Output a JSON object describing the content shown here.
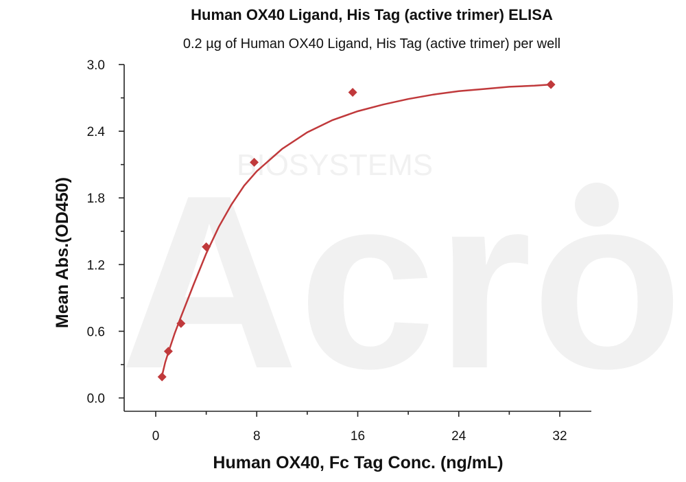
{
  "watermark": {
    "logo_text": "Acro",
    "sub_text": "BIOSYSTEMS"
  },
  "chart_data": {
    "type": "scatter",
    "title": "Human OX40 Ligand, His Tag (active trimer) ELISA",
    "subtitle": "0.2 µg of Human OX40 Ligand, His Tag (active trimer) per well",
    "xlabel": "Human OX40, Fc Tag Conc. (ng/mL)",
    "ylabel": "Mean Abs.(OD450)",
    "xlim": [
      -2.5,
      34.5
    ],
    "ylim": [
      -0.12,
      3.0
    ],
    "x_ticks": [
      0,
      8,
      16,
      24,
      32
    ],
    "y_ticks": [
      0.0,
      0.6,
      1.2,
      1.8,
      2.4,
      3.0
    ],
    "x_tick_labels": [
      "0",
      "8",
      "16",
      "24",
      "32"
    ],
    "y_tick_labels": [
      "0.0",
      "0.6",
      "1.2",
      "1.8",
      "2.4",
      "3.0"
    ],
    "grid": false,
    "color": "#c0393b",
    "series": [
      {
        "marker": "diamond",
        "x": [
          0.5,
          1.0,
          2.0,
          4.0,
          7.8,
          15.6,
          31.3
        ],
        "y": [
          0.19,
          0.42,
          0.67,
          1.36,
          2.12,
          2.75,
          2.82
        ]
      }
    ],
    "fit_curve": {
      "type": "4PL",
      "x": [
        0.5,
        0.75,
        1.0,
        1.5,
        2.0,
        3.0,
        4.0,
        5.0,
        6.0,
        7.0,
        8.0,
        10.0,
        12.0,
        14.0,
        16.0,
        18.0,
        20.0,
        22.0,
        24.0,
        26.0,
        28.0,
        30.0,
        31.3
      ],
      "y": [
        0.2,
        0.32,
        0.41,
        0.58,
        0.73,
        1.02,
        1.3,
        1.54,
        1.74,
        1.91,
        2.04,
        2.24,
        2.39,
        2.5,
        2.58,
        2.64,
        2.69,
        2.73,
        2.76,
        2.78,
        2.8,
        2.81,
        2.82
      ]
    }
  }
}
